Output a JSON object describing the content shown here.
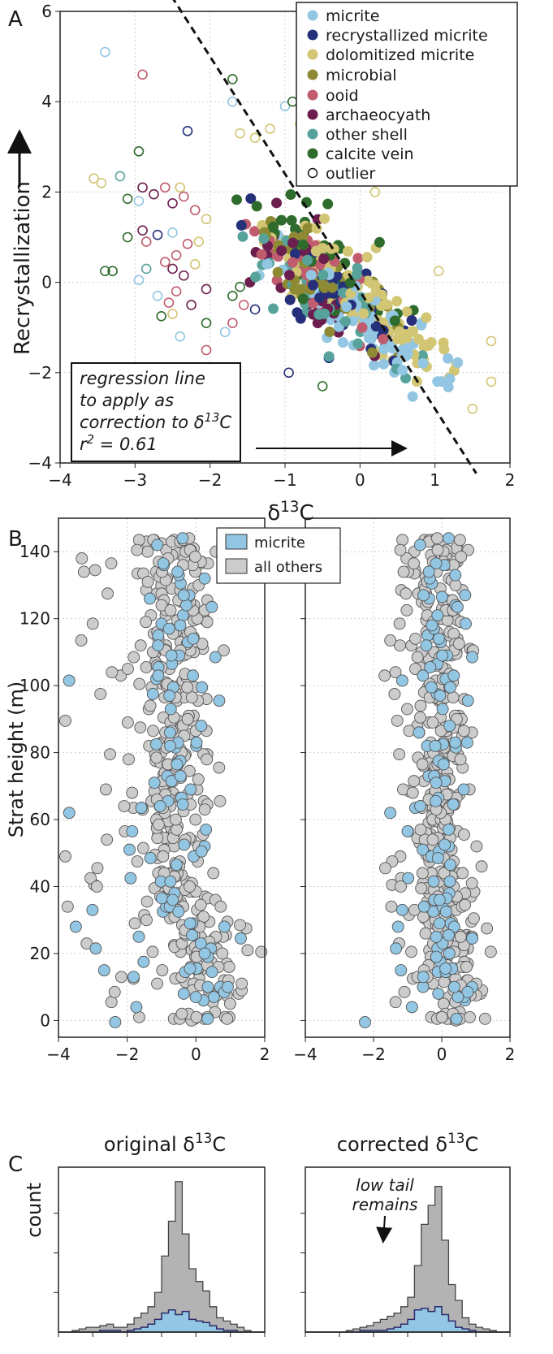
{
  "chart_data": [
    {
      "panel": "A",
      "type": "scatter",
      "xlabel": "δ13C",
      "ylabel": "Recrystallization",
      "xlim": [
        -4,
        2
      ],
      "ylim": [
        -4,
        6
      ],
      "xticks": [
        -4,
        -3,
        -2,
        -1,
        0,
        1,
        2
      ],
      "yticks": [
        -4,
        -2,
        0,
        2,
        4,
        6
      ],
      "grid": true,
      "legend_position": "top-right",
      "series": [
        {
          "name": "micrite",
          "color": "#93c6e2",
          "center": [
            0.2,
            -1.0
          ],
          "spread": [
            0.5,
            0.7
          ],
          "n": 80
        },
        {
          "name": "recrystallized micrite",
          "color": "#26307a",
          "center": [
            -0.2,
            -0.4
          ],
          "spread": [
            0.45,
            0.7
          ],
          "n": 60
        },
        {
          "name": "dolomitized micrite",
          "color": "#d2c573",
          "center": [
            0.0,
            -0.4
          ],
          "spread": [
            0.6,
            0.8
          ],
          "n": 95
        },
        {
          "name": "microbial",
          "color": "#8d8a33",
          "center": [
            -0.5,
            0.1
          ],
          "spread": [
            0.45,
            0.7
          ],
          "n": 45
        },
        {
          "name": "ooid",
          "color": "#bf5c6e",
          "center": [
            -0.6,
            0.2
          ],
          "spread": [
            0.4,
            0.7
          ],
          "n": 40
        },
        {
          "name": "archaeocyath",
          "color": "#6c1f4e",
          "center": [
            -0.7,
            0.0
          ],
          "spread": [
            0.45,
            0.8
          ],
          "n": 35
        },
        {
          "name": "other shell",
          "color": "#57a39b",
          "center": [
            -0.4,
            -0.3
          ],
          "spread": [
            0.5,
            0.7
          ],
          "n": 45
        },
        {
          "name": "calcite vein",
          "color": "#2f6b2c",
          "center": [
            -0.5,
            0.6
          ],
          "spread": [
            0.5,
            0.9
          ],
          "n": 40
        }
      ],
      "outlier_label": "outlier",
      "outliers": [
        {
          "x": -3.4,
          "y": 5.1,
          "color": "#93c6e2"
        },
        {
          "x": -2.9,
          "y": 4.6,
          "color": "#bf5c6e"
        },
        {
          "x": -1.7,
          "y": 4.0,
          "color": "#93c6e2"
        },
        {
          "x": -1.7,
          "y": 4.5,
          "color": "#2f6b2c"
        },
        {
          "x": -2.3,
          "y": 3.35,
          "color": "#26307a"
        },
        {
          "x": -1.6,
          "y": 3.3,
          "color": "#d2c573"
        },
        {
          "x": -1.4,
          "y": 3.2,
          "color": "#d2c573"
        },
        {
          "x": -1.2,
          "y": 3.4,
          "color": "#d2c573"
        },
        {
          "x": -1.0,
          "y": 3.9,
          "color": "#93c6e2"
        },
        {
          "x": -0.9,
          "y": 4.0,
          "color": "#2f6b2c"
        },
        {
          "x": -0.8,
          "y": 3.5,
          "color": "#d2c573"
        },
        {
          "x": -2.95,
          "y": 2.9,
          "color": "#2f6b2c"
        },
        {
          "x": -3.2,
          "y": 2.35,
          "color": "#57a39b"
        },
        {
          "x": -3.55,
          "y": 2.3,
          "color": "#d2c573"
        },
        {
          "x": -3.45,
          "y": 2.2,
          "color": "#d2c573"
        },
        {
          "x": -2.9,
          "y": 2.1,
          "color": "#6c1f4e"
        },
        {
          "x": -2.6,
          "y": 2.1,
          "color": "#bf5c6e"
        },
        {
          "x": -2.4,
          "y": 2.1,
          "color": "#d2c573"
        },
        {
          "x": -2.75,
          "y": 1.95,
          "color": "#6c1f4e"
        },
        {
          "x": -2.35,
          "y": 1.9,
          "color": "#bf5c6e"
        },
        {
          "x": -2.95,
          "y": 1.8,
          "color": "#93c6e2"
        },
        {
          "x": -3.1,
          "y": 1.85,
          "color": "#2f6b2c"
        },
        {
          "x": -2.5,
          "y": 1.75,
          "color": "#6c1f4e"
        },
        {
          "x": -2.2,
          "y": 1.6,
          "color": "#bf5c6e"
        },
        {
          "x": -2.05,
          "y": 1.4,
          "color": "#d2c573"
        },
        {
          "x": -2.9,
          "y": 1.15,
          "color": "#6c1f4e"
        },
        {
          "x": -2.7,
          "y": 1.05,
          "color": "#26307a"
        },
        {
          "x": -2.5,
          "y": 1.1,
          "color": "#93c6e2"
        },
        {
          "x": -3.1,
          "y": 1.0,
          "color": "#2f6b2c"
        },
        {
          "x": -2.3,
          "y": 0.85,
          "color": "#bf5c6e"
        },
        {
          "x": -2.85,
          "y": 0.9,
          "color": "#bf5c6e"
        },
        {
          "x": -2.15,
          "y": 0.9,
          "color": "#d2c573"
        },
        {
          "x": -2.45,
          "y": 0.6,
          "color": "#bf5c6e"
        },
        {
          "x": -2.6,
          "y": 0.45,
          "color": "#bf5c6e"
        },
        {
          "x": -2.85,
          "y": 0.3,
          "color": "#57a39b"
        },
        {
          "x": -3.4,
          "y": 0.25,
          "color": "#2f6b2c"
        },
        {
          "x": -3.3,
          "y": 0.25,
          "color": "#2f6b2c"
        },
        {
          "x": -2.5,
          "y": 0.3,
          "color": "#6c1f4e"
        },
        {
          "x": -2.2,
          "y": 0.4,
          "color": "#d2c573"
        },
        {
          "x": -2.35,
          "y": 0.15,
          "color": "#6c1f4e"
        },
        {
          "x": -2.95,
          "y": 0.05,
          "color": "#93c6e2"
        },
        {
          "x": -2.05,
          "y": -0.15,
          "color": "#6c1f4e"
        },
        {
          "x": -2.45,
          "y": -0.2,
          "color": "#bf5c6e"
        },
        {
          "x": -2.7,
          "y": -0.3,
          "color": "#93c6e2"
        },
        {
          "x": -2.55,
          "y": -0.45,
          "color": "#bf5c6e"
        },
        {
          "x": -2.65,
          "y": -0.75,
          "color": "#2f6b2c"
        },
        {
          "x": -2.5,
          "y": -0.7,
          "color": "#d2c573"
        },
        {
          "x": -2.05,
          "y": -0.9,
          "color": "#2f6b2c"
        },
        {
          "x": -2.25,
          "y": -0.5,
          "color": "#6c1f4e"
        },
        {
          "x": -1.7,
          "y": -0.3,
          "color": "#2f6b2c"
        },
        {
          "x": -1.6,
          "y": -0.1,
          "color": "#2f6b2c"
        },
        {
          "x": -1.55,
          "y": -0.5,
          "color": "#bf5c6e"
        },
        {
          "x": -1.4,
          "y": -0.6,
          "color": "#26307a"
        },
        {
          "x": -1.7,
          "y": -0.9,
          "color": "#bf5c6e"
        },
        {
          "x": -1.8,
          "y": -1.1,
          "color": "#93c6e2"
        },
        {
          "x": -2.4,
          "y": -1.2,
          "color": "#93c6e2"
        },
        {
          "x": -2.05,
          "y": -1.5,
          "color": "#bf5c6e"
        },
        {
          "x": -0.95,
          "y": -2.0,
          "color": "#26307a"
        },
        {
          "x": -0.5,
          "y": -2.3,
          "color": "#2f6b2c"
        },
        {
          "x": 1.05,
          "y": 0.25,
          "color": "#d2c573"
        },
        {
          "x": 1.75,
          "y": -1.3,
          "color": "#d2c573"
        },
        {
          "x": 1.75,
          "y": -2.2,
          "color": "#d2c573"
        },
        {
          "x": 1.5,
          "y": -2.8,
          "color": "#d2c573"
        },
        {
          "x": 0.2,
          "y": 2.0,
          "color": "#d2c573"
        }
      ],
      "regression": {
        "slope": -2.6,
        "intercept": -0.2
      },
      "annotation": [
        "regression line",
        "to apply as",
        "correction to δ13C",
        "r2 = 0.61"
      ]
    },
    {
      "panel": "B",
      "type": "scatter",
      "subplots": [
        {
          "xlabel": "original δ13C",
          "shift": 0
        },
        {
          "xlabel": "corrected δ13C",
          "shift": 1
        }
      ],
      "ylabel": "Strat height (m)",
      "xlim": [
        -4,
        2
      ],
      "ylim": [
        -5,
        150
      ],
      "xticks": [
        -4,
        -2,
        0,
        2
      ],
      "yticks": [
        0,
        20,
        40,
        60,
        80,
        100,
        120,
        140
      ],
      "legend_position": "top-center",
      "series": [
        {
          "name": "micrite",
          "color": "#93c6e2"
        },
        {
          "name": "all others",
          "color": "#cccccc"
        }
      ]
    },
    {
      "panel": "C",
      "type": "histogram",
      "ylabel": "count",
      "annotation": [
        "low tail",
        "remains"
      ],
      "bin_edges": [
        -4.0,
        -3.8,
        -3.6,
        -3.4,
        -3.2,
        -3.0,
        -2.8,
        -2.6,
        -2.4,
        -2.2,
        -2.0,
        -1.8,
        -1.6,
        -1.4,
        -1.2,
        -1.0,
        -0.8,
        -0.6,
        -0.4,
        -0.2,
        0.0,
        0.2,
        0.4,
        0.6,
        0.8,
        1.0,
        1.2,
        1.4,
        1.6,
        1.8,
        2.0
      ],
      "original": {
        "all": [
          0,
          0,
          1,
          2,
          3,
          3,
          4,
          5,
          3,
          3,
          5,
          9,
          12,
          16,
          25,
          48,
          70,
          95,
          62,
          40,
          32,
          26,
          16,
          9,
          7,
          5,
          3,
          1,
          0,
          0
        ],
        "micrite": [
          0,
          0,
          0,
          0,
          0,
          0,
          1,
          1,
          1,
          0,
          1,
          2,
          3,
          5,
          8,
          12,
          14,
          11,
          13,
          8,
          7,
          6,
          4,
          2,
          1,
          1,
          0,
          0,
          0,
          0
        ]
      },
      "corrected": {
        "all": [
          0,
          0,
          0,
          0,
          0,
          0,
          1,
          2,
          3,
          4,
          6,
          8,
          10,
          12,
          16,
          22,
          42,
          68,
          80,
          92,
          58,
          30,
          20,
          9,
          5,
          3,
          2,
          1,
          0,
          0
        ],
        "micrite": [
          0,
          0,
          0,
          0,
          0,
          0,
          0,
          0,
          1,
          1,
          1,
          1,
          2,
          3,
          5,
          8,
          14,
          15,
          13,
          16,
          11,
          7,
          3,
          2,
          1,
          0,
          0,
          0,
          0,
          0
        ]
      }
    }
  ],
  "labels": {
    "panel_a": "A",
    "panel_b": "B",
    "panel_c": "C"
  }
}
